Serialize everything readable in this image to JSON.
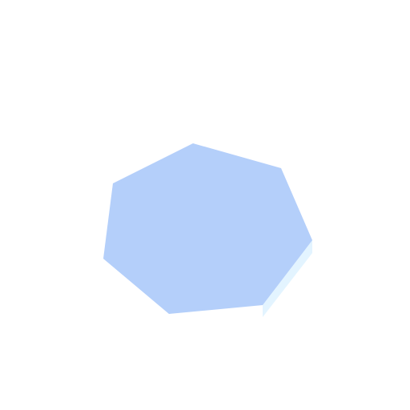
{
  "canvas": {
    "background": "#ffffff"
  },
  "shape": {
    "kind": "heptagon",
    "face_color": "#b4cffa",
    "side_color": "#e3f4ff"
  }
}
